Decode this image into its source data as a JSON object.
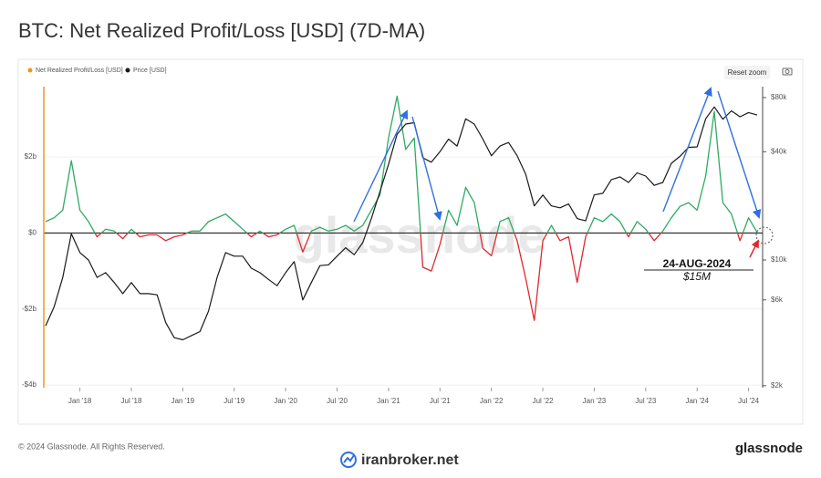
{
  "chart_data": {
    "type": "line",
    "title": "BTC: Net Realized Profit/Loss [USD] (7D-MA)",
    "x": [
      "2017-09",
      "2017-10",
      "2017-11",
      "2017-12",
      "2018-01",
      "2018-02",
      "2018-03",
      "2018-04",
      "2018-05",
      "2018-06",
      "2018-07",
      "2018-08",
      "2018-09",
      "2018-10",
      "2018-11",
      "2018-12",
      "2019-01",
      "2019-02",
      "2019-03",
      "2019-04",
      "2019-05",
      "2019-06",
      "2019-07",
      "2019-08",
      "2019-09",
      "2019-10",
      "2019-11",
      "2019-12",
      "2020-01",
      "2020-02",
      "2020-03",
      "2020-04",
      "2020-05",
      "2020-06",
      "2020-07",
      "2020-08",
      "2020-09",
      "2020-10",
      "2020-11",
      "2020-12",
      "2021-01",
      "2021-02",
      "2021-03",
      "2021-04",
      "2021-05",
      "2021-06",
      "2021-07",
      "2021-08",
      "2021-09",
      "2021-10",
      "2021-11",
      "2021-12",
      "2022-01",
      "2022-02",
      "2022-03",
      "2022-04",
      "2022-05",
      "2022-06",
      "2022-07",
      "2022-08",
      "2022-09",
      "2022-10",
      "2022-11",
      "2022-12",
      "2023-01",
      "2023-02",
      "2023-03",
      "2023-04",
      "2023-05",
      "2023-06",
      "2023-07",
      "2023-08",
      "2023-09",
      "2023-10",
      "2023-11",
      "2023-12",
      "2024-01",
      "2024-02",
      "2024-03",
      "2024-04",
      "2024-05",
      "2024-06",
      "2024-07",
      "2024-08"
    ],
    "series": [
      {
        "name": "Net Realized Profit/Loss [USD]",
        "color": "#f7931a",
        "positive_color": "#2eaa64",
        "negative_color": "#e0282e",
        "values": [
          0.3,
          0.4,
          0.6,
          1.9,
          0.6,
          0.3,
          -0.1,
          0.1,
          0.05,
          -0.15,
          0.1,
          -0.1,
          -0.05,
          -0.05,
          -0.2,
          -0.1,
          -0.05,
          0.05,
          0.05,
          0.3,
          0.4,
          0.5,
          0.3,
          0.1,
          -0.1,
          0.05,
          -0.1,
          -0.05,
          0.1,
          0.2,
          -0.5,
          0.05,
          0.15,
          0.05,
          0.1,
          0.2,
          0.05,
          0.2,
          0.6,
          1.0,
          2.5,
          3.6,
          2.2,
          2.5,
          -0.9,
          -1.0,
          -0.3,
          0.6,
          0.2,
          1.2,
          0.8,
          -0.4,
          -0.6,
          0.3,
          0.4,
          -0.2,
          -1.2,
          -2.3,
          -0.2,
          0.2,
          -0.2,
          -0.1,
          -1.3,
          -0.1,
          0.4,
          0.3,
          0.5,
          0.3,
          -0.1,
          0.3,
          0.1,
          -0.2,
          0.05,
          0.4,
          0.7,
          0.8,
          0.6,
          1.5,
          3.2,
          0.8,
          0.5,
          -0.2,
          0.4,
          0.015
        ]
      },
      {
        "name": "Price [USD]",
        "color": "#1a1a1a",
        "axis": "y2",
        "values": [
          4300,
          5500,
          8000,
          14000,
          11000,
          10000,
          8000,
          8500,
          7500,
          6500,
          7500,
          6500,
          6500,
          6400,
          4500,
          3700,
          3600,
          3800,
          4000,
          5200,
          8000,
          11000,
          10500,
          10500,
          9000,
          8500,
          7800,
          7200,
          8500,
          9800,
          6000,
          7500,
          9300,
          9400,
          10500,
          11700,
          10700,
          12500,
          17000,
          24000,
          34000,
          50000,
          57000,
          58000,
          37000,
          35000,
          40000,
          47000,
          43000,
          61000,
          57000,
          47000,
          38000,
          43000,
          45000,
          38000,
          30000,
          20000,
          23000,
          20000,
          19500,
          20500,
          17000,
          16500,
          23000,
          23500,
          28000,
          29000,
          27000,
          30500,
          29300,
          26000,
          27000,
          34500,
          37700,
          42300,
          42500,
          61000,
          71000,
          60600,
          67500,
          62600,
          66000,
          64000
        ]
      }
    ],
    "xlim": [
      "2017-09",
      "2024-08"
    ],
    "xticks": [
      {
        "value": "2018-01",
        "label": "Jan '18"
      },
      {
        "value": "2018-07",
        "label": "Jul '18"
      },
      {
        "value": "2019-01",
        "label": "Jan '19"
      },
      {
        "value": "2019-07",
        "label": "Jul '19"
      },
      {
        "value": "2020-01",
        "label": "Jan '20"
      },
      {
        "value": "2020-07",
        "label": "Jul '20"
      },
      {
        "value": "2021-01",
        "label": "Jan '21"
      },
      {
        "value": "2021-07",
        "label": "Jul '21"
      },
      {
        "value": "2022-01",
        "label": "Jan '22"
      },
      {
        "value": "2022-07",
        "label": "Jul '22"
      },
      {
        "value": "2023-01",
        "label": "Jan '23"
      },
      {
        "value": "2023-07",
        "label": "Jul '23"
      },
      {
        "value": "2024-01",
        "label": "Jan '24"
      },
      {
        "value": "2024-07",
        "label": "Jul '24"
      }
    ],
    "ylim": [
      -4.07,
      3.85
    ],
    "yticks": [
      {
        "value": -4,
        "label": "-$4b"
      },
      {
        "value": -2,
        "label": "-$2b"
      },
      {
        "value": 0,
        "label": "$0"
      },
      {
        "value": 2,
        "label": "$2b"
      }
    ],
    "y2lim": [
      1950,
      92000
    ],
    "y2ticks": [
      {
        "value": 2000,
        "label": "$2k"
      },
      {
        "value": 6000,
        "label": "$6k"
      },
      {
        "value": 10000,
        "label": "$10k"
      },
      {
        "value": 40000,
        "label": "$40k"
      },
      {
        "value": 80000,
        "label": "$80k"
      }
    ],
    "y2scale": "log",
    "grid": true,
    "legend": "top-left",
    "annotations": [
      {
        "text": "24-AUG-2024",
        "x": "2024-08",
        "y": 0.015,
        "value_label": "$15M"
      }
    ]
  },
  "watermark": "glassnode",
  "reset_button": "Reset zoom",
  "footer": {
    "copyright": "© 2024 Glassnode. All Rights Reserved.",
    "source": "iranbroker.net",
    "brand": "glassnode"
  }
}
